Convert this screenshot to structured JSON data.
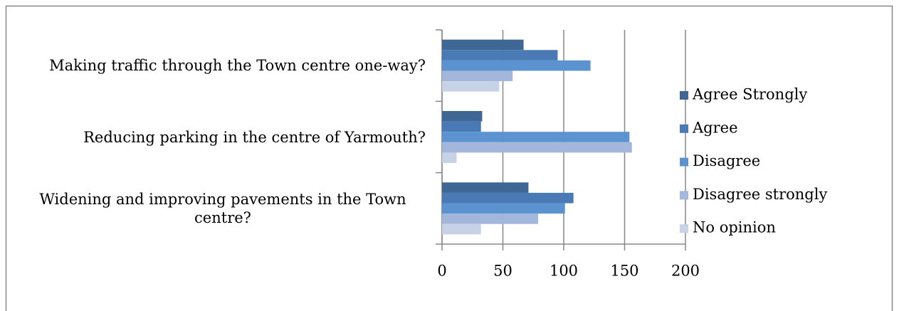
{
  "chart_data": {
    "type": "hbar",
    "categories": [
      "Making traffic through the Town centre one-way?",
      "Reducing parking in the centre of Yarmouth?",
      "Widening and improving pavements in the Town centre?"
    ],
    "series": [
      {
        "name": "Agree Strongly",
        "color": "#3f6796",
        "values": [
          67,
          33,
          71
        ]
      },
      {
        "name": "Agree",
        "color": "#4a7ab5",
        "values": [
          95,
          32,
          108
        ]
      },
      {
        "name": "Disagree",
        "color": "#5b93d0",
        "values": [
          122,
          154,
          101
        ]
      },
      {
        "name": "Disagree strongly",
        "color": "#a3b6db",
        "values": [
          58,
          156,
          79
        ]
      },
      {
        "name": "No opinion",
        "color": "#c8d2e6",
        "values": [
          47,
          12,
          32
        ]
      }
    ],
    "xlim": [
      0,
      200
    ],
    "xticks": [
      0,
      50,
      100,
      150,
      200
    ],
    "grid": true,
    "legend": "right"
  }
}
